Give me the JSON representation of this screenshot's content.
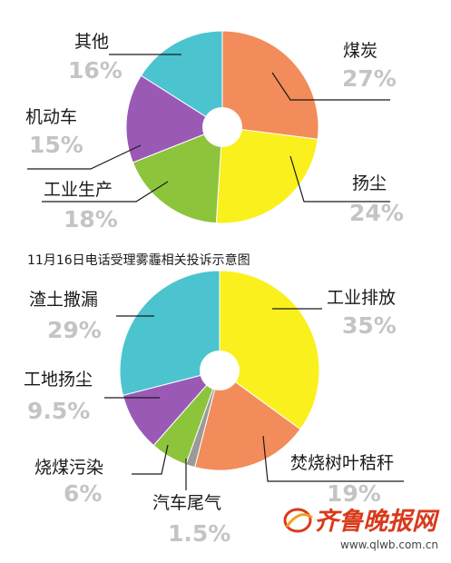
{
  "chart_data": [
    {
      "type": "pie",
      "title": "",
      "slices": [
        {
          "label": "煤炭",
          "value": 27,
          "display": "27%",
          "color": "#f28c5a"
        },
        {
          "label": "扬尘",
          "value": 24,
          "display": "24%",
          "color": "#faf01e"
        },
        {
          "label": "工业生产",
          "value": 18,
          "display": "18%",
          "color": "#8cc43c"
        },
        {
          "label": "机动车",
          "value": 15,
          "display": "15%",
          "color": "#9b59b6"
        },
        {
          "label": "其他",
          "value": 16,
          "display": "16%",
          "color": "#4cc4d0"
        }
      ]
    },
    {
      "type": "pie",
      "title": "11月16日电话受理雾霾相关投诉示意图",
      "slices": [
        {
          "label": "工业排放",
          "value": 35,
          "display": "35%",
          "color": "#faf01e"
        },
        {
          "label": "焚烧树叶秸秆",
          "value": 19,
          "display": "19%",
          "color": "#f28c5a"
        },
        {
          "label": "汽车尾气",
          "value": 1.5,
          "display": "1.5%",
          "color": "#9a9a9a"
        },
        {
          "label": "烧煤污染",
          "value": 6,
          "display": "6%",
          "color": "#8cc43c"
        },
        {
          "label": "工地扬尘",
          "value": 9.5,
          "display": "9.5%",
          "color": "#9b59b6"
        },
        {
          "label": "渣土撒漏",
          "value": 29,
          "display": "29%",
          "color": "#4cc4d0"
        }
      ]
    }
  ],
  "watermark": {
    "logo_text": "齐鲁晚报网",
    "url": "www.qlwb.com.cn"
  }
}
